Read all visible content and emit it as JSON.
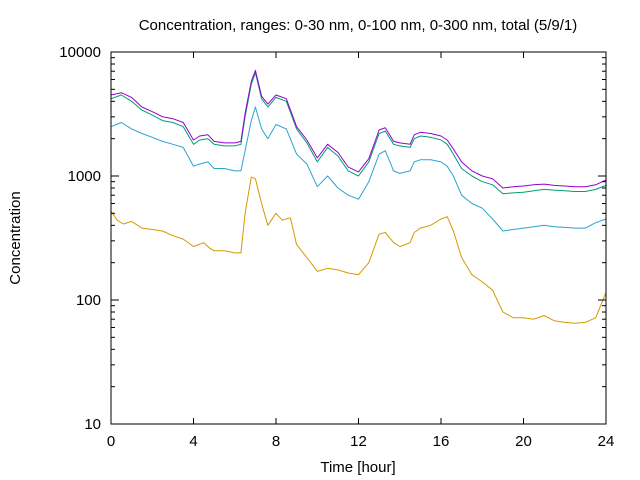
{
  "chart_data": {
    "type": "line",
    "title": "Concentration, ranges: 0-30 nm, 0-100 nm, 0-300 nm, total (5/9/1)",
    "xlabel": "Time [hour]",
    "ylabel": "Concentration",
    "xlim": [
      0,
      24
    ],
    "ylim": [
      10,
      10000
    ],
    "y_scale": "log",
    "x_ticks": [
      "0",
      "4",
      "8",
      "12",
      "16",
      "20",
      "24"
    ],
    "y_ticks": [
      "10",
      "100",
      "1000",
      "10000"
    ],
    "grid": false,
    "legend": "none",
    "series": [
      {
        "color": "#d49a00",
        "points": [
          [
            0,
            520
          ],
          [
            0.3,
            440
          ],
          [
            0.6,
            410
          ],
          [
            1,
            430
          ],
          [
            1.5,
            380
          ],
          [
            2,
            370
          ],
          [
            2.5,
            360
          ],
          [
            3,
            330
          ],
          [
            3.5,
            310
          ],
          [
            4,
            270
          ],
          [
            4.5,
            290
          ],
          [
            4.8,
            260
          ],
          [
            5,
            250
          ],
          [
            5.5,
            250
          ],
          [
            6,
            240
          ],
          [
            6.3,
            240
          ],
          [
            6.5,
            500
          ],
          [
            6.8,
            980
          ],
          [
            7,
            950
          ],
          [
            7.3,
            600
          ],
          [
            7.6,
            400
          ],
          [
            8,
            500
          ],
          [
            8.3,
            440
          ],
          [
            8.7,
            460
          ],
          [
            9,
            280
          ],
          [
            9.5,
            220
          ],
          [
            10,
            170
          ],
          [
            10.5,
            180
          ],
          [
            11,
            175
          ],
          [
            11.5,
            165
          ],
          [
            12,
            160
          ],
          [
            12.5,
            200
          ],
          [
            13,
            340
          ],
          [
            13.3,
            350
          ],
          [
            13.7,
            290
          ],
          [
            14,
            270
          ],
          [
            14.5,
            290
          ],
          [
            14.7,
            350
          ],
          [
            15,
            380
          ],
          [
            15.5,
            400
          ],
          [
            16,
            450
          ],
          [
            16.3,
            470
          ],
          [
            16.6,
            360
          ],
          [
            17,
            220
          ],
          [
            17.5,
            160
          ],
          [
            18,
            140
          ],
          [
            18.5,
            120
          ],
          [
            19,
            80
          ],
          [
            19.5,
            72
          ],
          [
            20,
            72
          ],
          [
            20.5,
            70
          ],
          [
            21,
            75
          ],
          [
            21.5,
            68
          ],
          [
            22,
            66
          ],
          [
            22.5,
            65
          ],
          [
            23,
            66
          ],
          [
            23.5,
            72
          ],
          [
            24,
            115
          ]
        ]
      },
      {
        "color": "#2ba3d0",
        "points": [
          [
            0,
            2500
          ],
          [
            0.5,
            2700
          ],
          [
            1,
            2400
          ],
          [
            1.5,
            2200
          ],
          [
            2,
            2050
          ],
          [
            2.5,
            1900
          ],
          [
            3,
            1800
          ],
          [
            3.5,
            1700
          ],
          [
            4,
            1200
          ],
          [
            4.3,
            1250
          ],
          [
            4.7,
            1300
          ],
          [
            5,
            1150
          ],
          [
            5.5,
            1150
          ],
          [
            6,
            1100
          ],
          [
            6.3,
            1100
          ],
          [
            6.5,
            1600
          ],
          [
            6.8,
            2800
          ],
          [
            7,
            3600
          ],
          [
            7.3,
            2400
          ],
          [
            7.6,
            2000
          ],
          [
            8,
            2600
          ],
          [
            8.5,
            2400
          ],
          [
            9,
            1500
          ],
          [
            9.5,
            1250
          ],
          [
            10,
            820
          ],
          [
            10.5,
            1000
          ],
          [
            11,
            800
          ],
          [
            11.5,
            700
          ],
          [
            12,
            650
          ],
          [
            12.5,
            900
          ],
          [
            13,
            1500
          ],
          [
            13.3,
            1600
          ],
          [
            13.7,
            1100
          ],
          [
            14,
            1050
          ],
          [
            14.5,
            1100
          ],
          [
            14.7,
            1300
          ],
          [
            15,
            1350
          ],
          [
            15.5,
            1350
          ],
          [
            16,
            1300
          ],
          [
            16.3,
            1200
          ],
          [
            16.6,
            1000
          ],
          [
            17,
            700
          ],
          [
            17.5,
            600
          ],
          [
            18,
            550
          ],
          [
            18.5,
            450
          ],
          [
            19,
            360
          ],
          [
            19.5,
            370
          ],
          [
            20,
            380
          ],
          [
            20.5,
            390
          ],
          [
            21,
            400
          ],
          [
            21.5,
            390
          ],
          [
            22,
            385
          ],
          [
            22.5,
            380
          ],
          [
            23,
            380
          ],
          [
            23.5,
            420
          ],
          [
            24,
            450
          ]
        ]
      },
      {
        "color": "#009e73",
        "points": [
          [
            0,
            4200
          ],
          [
            0.5,
            4500
          ],
          [
            1,
            4000
          ],
          [
            1.5,
            3400
          ],
          [
            2,
            3100
          ],
          [
            2.5,
            2800
          ],
          [
            3,
            2700
          ],
          [
            3.5,
            2500
          ],
          [
            4,
            1800
          ],
          [
            4.3,
            1950
          ],
          [
            4.7,
            2000
          ],
          [
            5,
            1800
          ],
          [
            5.5,
            1750
          ],
          [
            6,
            1750
          ],
          [
            6.3,
            1800
          ],
          [
            6.5,
            3000
          ],
          [
            6.8,
            5500
          ],
          [
            7,
            6800
          ],
          [
            7.3,
            4200
          ],
          [
            7.6,
            3600
          ],
          [
            8,
            4300
          ],
          [
            8.5,
            4000
          ],
          [
            9,
            2400
          ],
          [
            9.5,
            1850
          ],
          [
            10,
            1300
          ],
          [
            10.5,
            1700
          ],
          [
            11,
            1450
          ],
          [
            11.5,
            1100
          ],
          [
            12,
            1000
          ],
          [
            12.5,
            1300
          ],
          [
            13,
            2200
          ],
          [
            13.3,
            2300
          ],
          [
            13.7,
            1800
          ],
          [
            14,
            1750
          ],
          [
            14.5,
            1700
          ],
          [
            14.7,
            2000
          ],
          [
            15,
            2100
          ],
          [
            15.5,
            2050
          ],
          [
            16,
            1950
          ],
          [
            16.3,
            1800
          ],
          [
            16.6,
            1500
          ],
          [
            17,
            1150
          ],
          [
            17.5,
            1000
          ],
          [
            18,
            900
          ],
          [
            18.5,
            850
          ],
          [
            19,
            720
          ],
          [
            19.5,
            730
          ],
          [
            20,
            740
          ],
          [
            20.5,
            760
          ],
          [
            21,
            780
          ],
          [
            21.5,
            770
          ],
          [
            22,
            760
          ],
          [
            22.5,
            750
          ],
          [
            23,
            750
          ],
          [
            23.5,
            780
          ],
          [
            24,
            840
          ]
        ]
      },
      {
        "color": "#9400d3",
        "points": [
          [
            0,
            4500
          ],
          [
            0.5,
            4700
          ],
          [
            1,
            4300
          ],
          [
            1.5,
            3600
          ],
          [
            2,
            3300
          ],
          [
            2.5,
            3000
          ],
          [
            3,
            2900
          ],
          [
            3.5,
            2700
          ],
          [
            4,
            1950
          ],
          [
            4.3,
            2100
          ],
          [
            4.7,
            2150
          ],
          [
            5,
            1900
          ],
          [
            5.5,
            1850
          ],
          [
            6,
            1850
          ],
          [
            6.3,
            1900
          ],
          [
            6.5,
            3200
          ],
          [
            6.8,
            5800
          ],
          [
            7,
            7100
          ],
          [
            7.3,
            4400
          ],
          [
            7.6,
            3800
          ],
          [
            8,
            4500
          ],
          [
            8.5,
            4200
          ],
          [
            9,
            2500
          ],
          [
            9.5,
            1950
          ],
          [
            10,
            1400
          ],
          [
            10.5,
            1800
          ],
          [
            11,
            1550
          ],
          [
            11.5,
            1180
          ],
          [
            12,
            1080
          ],
          [
            12.5,
            1380
          ],
          [
            13,
            2350
          ],
          [
            13.3,
            2450
          ],
          [
            13.7,
            1900
          ],
          [
            14,
            1850
          ],
          [
            14.5,
            1800
          ],
          [
            14.7,
            2150
          ],
          [
            15,
            2250
          ],
          [
            15.5,
            2200
          ],
          [
            16,
            2100
          ],
          [
            16.3,
            1950
          ],
          [
            16.6,
            1650
          ],
          [
            17,
            1300
          ],
          [
            17.5,
            1100
          ],
          [
            18,
            1000
          ],
          [
            18.5,
            950
          ],
          [
            19,
            800
          ],
          [
            19.5,
            820
          ],
          [
            20,
            830
          ],
          [
            20.5,
            850
          ],
          [
            21,
            860
          ],
          [
            21.5,
            840
          ],
          [
            22,
            830
          ],
          [
            22.5,
            820
          ],
          [
            23,
            820
          ],
          [
            23.5,
            850
          ],
          [
            24,
            930
          ]
        ]
      }
    ]
  }
}
